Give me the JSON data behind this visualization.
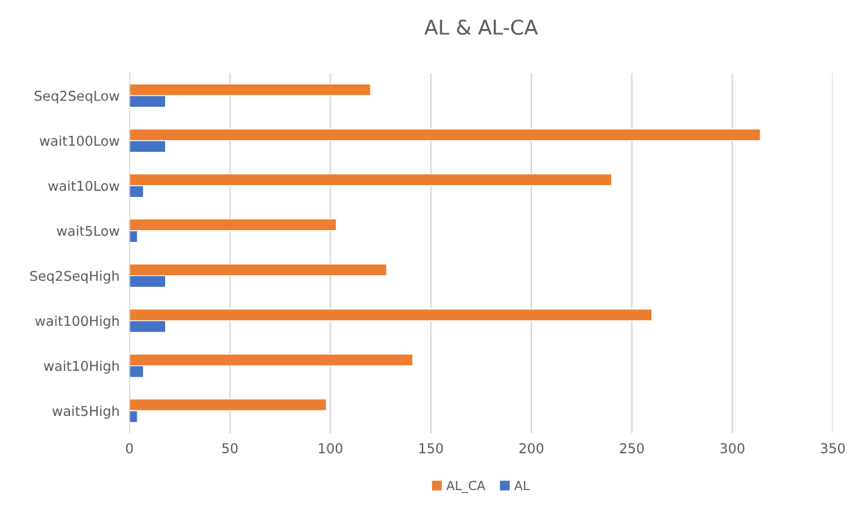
{
  "chart_data": {
    "type": "bar",
    "orientation": "horizontal",
    "title": "AL & AL-CA",
    "categories": [
      "Seq2SeqLow",
      "wait100Low",
      "wait10Low",
      "wait5Low",
      "Seq2SeqHigh",
      "wait100High",
      "wait10High",
      "wait5High"
    ],
    "series": [
      {
        "name": "AL_CA",
        "color": "#ed7d31",
        "values": [
          120,
          314,
          240,
          103,
          128,
          260,
          141,
          98
        ]
      },
      {
        "name": "AL",
        "color": "#4472c4",
        "values": [
          18,
          18,
          7,
          4,
          18,
          18,
          7,
          4
        ]
      }
    ],
    "xlim": [
      0,
      350
    ],
    "xticks": [
      0,
      50,
      100,
      150,
      200,
      250,
      300,
      350
    ],
    "grid": "x",
    "legend": "bottom"
  }
}
